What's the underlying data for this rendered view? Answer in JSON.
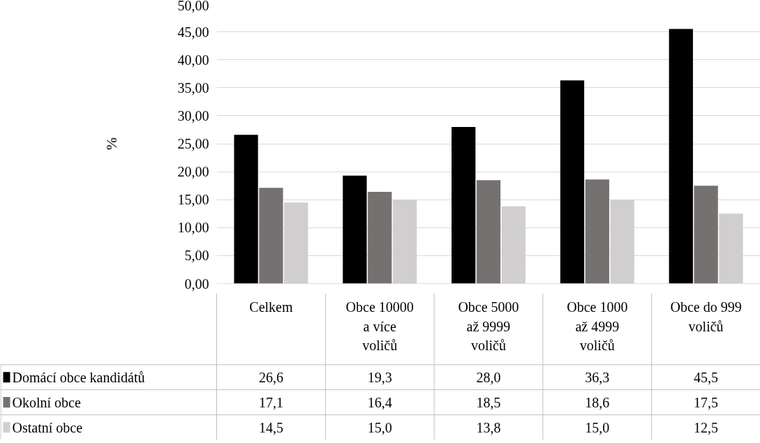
{
  "chart_data": {
    "type": "bar",
    "ylabel": "%",
    "categories": [
      "Celkem",
      "Obce 10000 a více voličů",
      "Obce 5000 až 9999 voličů",
      "Obce 1000 až 4999 voličů",
      "Obce do 999 voličů"
    ],
    "series": [
      {
        "name": "Domácí obce kandidátů",
        "color": "#000000",
        "values": [
          26.6,
          19.3,
          28.0,
          36.3,
          45.5
        ],
        "value_labels": [
          "26,6",
          "19,3",
          "28,0",
          "36,3",
          "45,5"
        ]
      },
      {
        "name": "Okolní obce",
        "color": "#767171",
        "values": [
          17.1,
          16.4,
          18.5,
          18.6,
          17.5
        ],
        "value_labels": [
          "17,1",
          "16,4",
          "18,5",
          "18,6",
          "17,5"
        ]
      },
      {
        "name": "Ostatní obce",
        "color": "#d0cece",
        "values": [
          14.5,
          15.0,
          13.8,
          15.0,
          12.5
        ],
        "value_labels": [
          "14,5",
          "15,0",
          "13,8",
          "15,0",
          "12,5"
        ]
      }
    ],
    "ylim": [
      0,
      50
    ],
    "yticks": [
      {
        "value": 0,
        "label": "0,00"
      },
      {
        "value": 5,
        "label": "5,00"
      },
      {
        "value": 10,
        "label": "10,00"
      },
      {
        "value": 15,
        "label": "15,00"
      },
      {
        "value": 20,
        "label": "20,00"
      },
      {
        "value": 25,
        "label": "25,00"
      },
      {
        "value": 30,
        "label": "30,00"
      },
      {
        "value": 35,
        "label": "35,00"
      },
      {
        "value": 40,
        "label": "40,00"
      },
      {
        "value": 45,
        "label": "45,00"
      },
      {
        "value": 50,
        "label": "50,00"
      }
    ],
    "grid": "y",
    "legend": "bottom left"
  }
}
